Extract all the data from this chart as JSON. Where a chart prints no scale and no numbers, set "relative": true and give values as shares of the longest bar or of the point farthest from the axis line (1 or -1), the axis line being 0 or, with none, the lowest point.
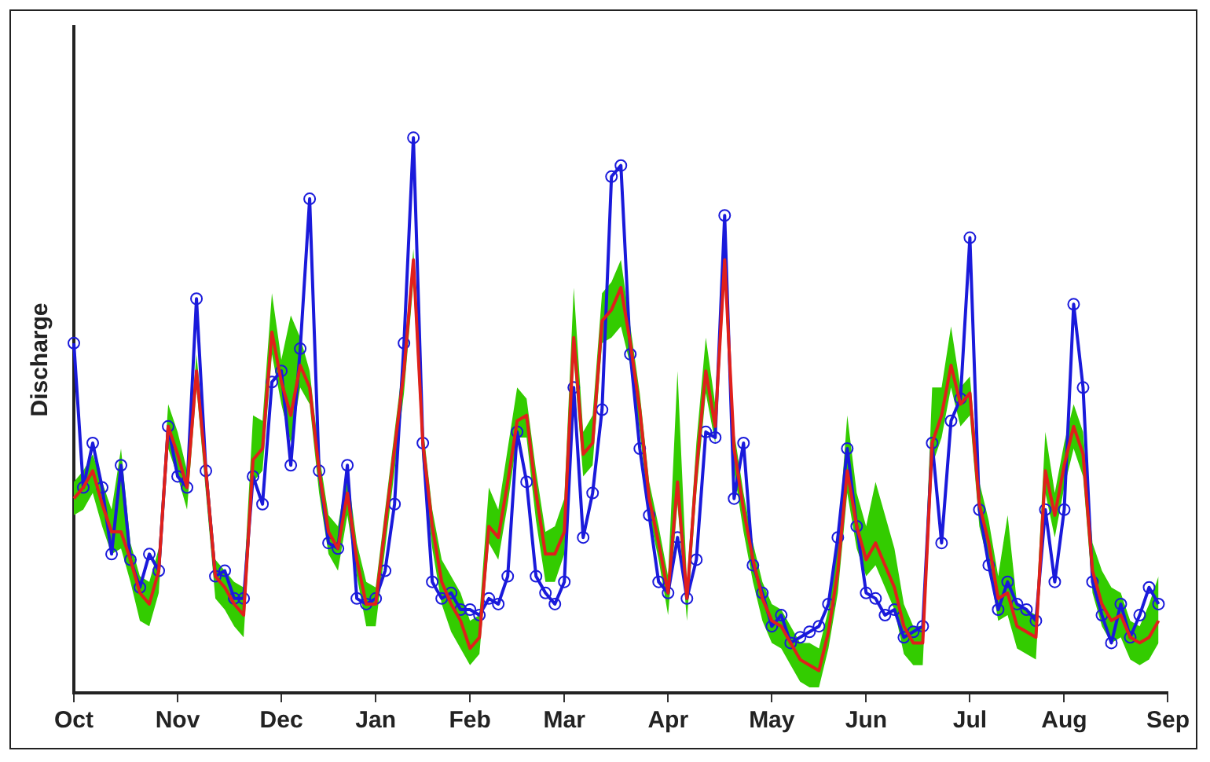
{
  "chart_data": {
    "type": "line",
    "ylabel": "Discharge",
    "relative": true,
    "legend": false,
    "categories": [
      "Oct",
      null,
      null,
      null,
      null,
      null,
      null,
      null,
      null,
      null,
      null,
      "Nov",
      null,
      null,
      null,
      null,
      null,
      null,
      null,
      null,
      null,
      null,
      "Dec",
      null,
      null,
      null,
      null,
      null,
      null,
      null,
      null,
      null,
      "Jan",
      null,
      null,
      null,
      null,
      null,
      null,
      null,
      null,
      null,
      "Feb",
      null,
      null,
      null,
      null,
      null,
      null,
      null,
      null,
      null,
      "Mar",
      null,
      null,
      null,
      null,
      null,
      null,
      null,
      null,
      null,
      null,
      "Apr",
      null,
      null,
      null,
      null,
      null,
      null,
      null,
      null,
      null,
      null,
      "May",
      null,
      null,
      null,
      null,
      null,
      null,
      null,
      null,
      null,
      "Jun",
      null,
      null,
      null,
      null,
      null,
      null,
      null,
      null,
      null,
      null,
      "Jul",
      null,
      null,
      null,
      null,
      null,
      null,
      null,
      null,
      null,
      "Aug",
      null,
      null,
      null,
      null,
      null,
      null,
      null,
      null,
      null,
      null,
      "Sep"
    ],
    "series": [
      {
        "color": "#e0201b",
        "marker": "none",
        "values": [
          0.35,
          0.37,
          0.4,
          0.34,
          0.29,
          0.29,
          0.24,
          0.18,
          0.16,
          0.22,
          0.48,
          0.43,
          0.37,
          0.58,
          0.4,
          0.21,
          0.19,
          0.16,
          0.14,
          0.42,
          0.44,
          0.65,
          0.56,
          0.5,
          0.59,
          0.55,
          0.4,
          0.29,
          0.26,
          0.36,
          0.24,
          0.16,
          0.16,
          0.3,
          0.44,
          0.58,
          0.78,
          0.45,
          0.3,
          0.2,
          0.16,
          0.13,
          0.08,
          0.1,
          0.3,
          0.28,
          0.38,
          0.49,
          0.5,
          0.36,
          0.25,
          0.25,
          0.29,
          0.64,
          0.43,
          0.45,
          0.67,
          0.69,
          0.73,
          0.63,
          0.51,
          0.35,
          0.27,
          0.18,
          0.38,
          0.17,
          0.4,
          0.58,
          0.48,
          0.78,
          0.44,
          0.33,
          0.24,
          0.17,
          0.13,
          0.12,
          0.09,
          0.06,
          0.05,
          0.04,
          0.11,
          0.22,
          0.4,
          0.3,
          0.24,
          0.27,
          0.23,
          0.19,
          0.12,
          0.09,
          0.09,
          0.45,
          0.5,
          0.59,
          0.52,
          0.54,
          0.34,
          0.27,
          0.17,
          0.18,
          0.12,
          0.11,
          0.1,
          0.4,
          0.32,
          0.41,
          0.48,
          0.43,
          0.22,
          0.16,
          0.13,
          0.14,
          0.1,
          0.09,
          0.1,
          0.13,
          null
        ],
        "upper": [
          0.38,
          0.4,
          0.43,
          0.38,
          0.33,
          0.44,
          0.27,
          0.21,
          0.2,
          0.26,
          0.52,
          0.47,
          0.4,
          0.61,
          0.43,
          0.24,
          0.22,
          0.2,
          0.19,
          0.5,
          0.49,
          0.72,
          0.6,
          0.68,
          0.64,
          0.58,
          0.43,
          0.32,
          0.3,
          0.4,
          0.27,
          0.2,
          0.19,
          0.33,
          0.47,
          0.61,
          0.8,
          0.48,
          0.33,
          0.24,
          0.21,
          0.18,
          0.13,
          0.14,
          0.37,
          0.33,
          0.44,
          0.55,
          0.53,
          0.4,
          0.29,
          0.3,
          0.35,
          0.73,
          0.47,
          0.5,
          0.72,
          0.74,
          0.78,
          0.66,
          0.54,
          0.38,
          0.3,
          0.21,
          0.58,
          0.2,
          0.45,
          0.64,
          0.52,
          0.8,
          0.47,
          0.36,
          0.27,
          0.2,
          0.16,
          0.15,
          0.12,
          0.09,
          0.09,
          0.08,
          0.15,
          0.27,
          0.5,
          0.36,
          0.3,
          0.38,
          0.32,
          0.26,
          0.16,
          0.12,
          0.12,
          0.55,
          0.55,
          0.66,
          0.55,
          0.57,
          0.38,
          0.31,
          0.21,
          0.32,
          0.16,
          0.15,
          0.14,
          0.47,
          0.36,
          0.45,
          0.52,
          0.47,
          0.27,
          0.22,
          0.19,
          0.18,
          0.13,
          0.12,
          0.16,
          0.21,
          null
        ],
        "lower": [
          0.32,
          0.33,
          0.36,
          0.3,
          0.25,
          0.26,
          0.2,
          0.13,
          0.12,
          0.18,
          0.44,
          0.39,
          0.33,
          0.55,
          0.36,
          0.17,
          0.15,
          0.12,
          0.1,
          0.38,
          0.4,
          0.61,
          0.52,
          0.45,
          0.55,
          0.52,
          0.36,
          0.25,
          0.22,
          0.32,
          0.21,
          0.12,
          0.12,
          0.26,
          0.4,
          0.54,
          0.74,
          0.41,
          0.26,
          0.16,
          0.11,
          0.08,
          0.05,
          0.07,
          0.27,
          0.24,
          0.34,
          0.46,
          0.46,
          0.31,
          0.2,
          0.2,
          0.25,
          0.6,
          0.39,
          0.41,
          0.63,
          0.64,
          0.66,
          0.59,
          0.47,
          0.32,
          0.24,
          0.14,
          0.34,
          0.13,
          0.36,
          0.54,
          0.45,
          0.74,
          0.4,
          0.29,
          0.2,
          0.13,
          0.09,
          0.08,
          0.05,
          0.02,
          0.01,
          0.01,
          0.08,
          0.18,
          0.36,
          0.26,
          0.21,
          0.23,
          0.19,
          0.15,
          0.07,
          0.05,
          0.05,
          0.41,
          0.46,
          0.55,
          0.48,
          0.5,
          0.3,
          0.23,
          0.13,
          0.14,
          0.08,
          0.07,
          0.06,
          0.36,
          0.28,
          0.37,
          0.44,
          0.39,
          0.18,
          0.12,
          0.09,
          0.1,
          0.06,
          0.05,
          0.06,
          0.09,
          null
        ]
      },
      {
        "color": "#1a1adb",
        "marker": "circle",
        "values": [
          0.63,
          0.37,
          0.45,
          0.37,
          0.25,
          0.41,
          0.24,
          0.19,
          0.25,
          0.22,
          0.48,
          0.39,
          0.37,
          0.71,
          0.4,
          0.21,
          0.22,
          0.17,
          0.17,
          0.39,
          0.34,
          0.56,
          0.58,
          0.41,
          0.62,
          0.89,
          0.4,
          0.27,
          0.26,
          0.41,
          0.17,
          0.16,
          0.17,
          0.22,
          0.34,
          0.63,
          1,
          0.45,
          0.2,
          0.17,
          0.18,
          0.15,
          0.15,
          0.14,
          0.17,
          0.16,
          0.21,
          0.47,
          0.38,
          0.21,
          0.18,
          0.16,
          0.2,
          0.55,
          0.28,
          0.36,
          0.51,
          0.93,
          0.95,
          0.61,
          0.44,
          0.32,
          0.2,
          0.18,
          0.28,
          0.17,
          0.24,
          0.47,
          0.46,
          0.86,
          0.35,
          0.45,
          0.23,
          0.18,
          0.12,
          0.14,
          0.09,
          0.1,
          0.11,
          0.12,
          0.16,
          0.28,
          0.44,
          0.3,
          0.18,
          0.17,
          0.14,
          0.15,
          0.1,
          0.11,
          0.12,
          0.45,
          0.27,
          0.49,
          0.53,
          0.82,
          0.33,
          0.23,
          0.15,
          0.2,
          0.16,
          0.15,
          0.13,
          0.33,
          0.2,
          0.33,
          0.7,
          0.55,
          0.2,
          0.14,
          0.09,
          0.16,
          0.1,
          0.14,
          0.19,
          0.16,
          null
        ]
      }
    ]
  }
}
